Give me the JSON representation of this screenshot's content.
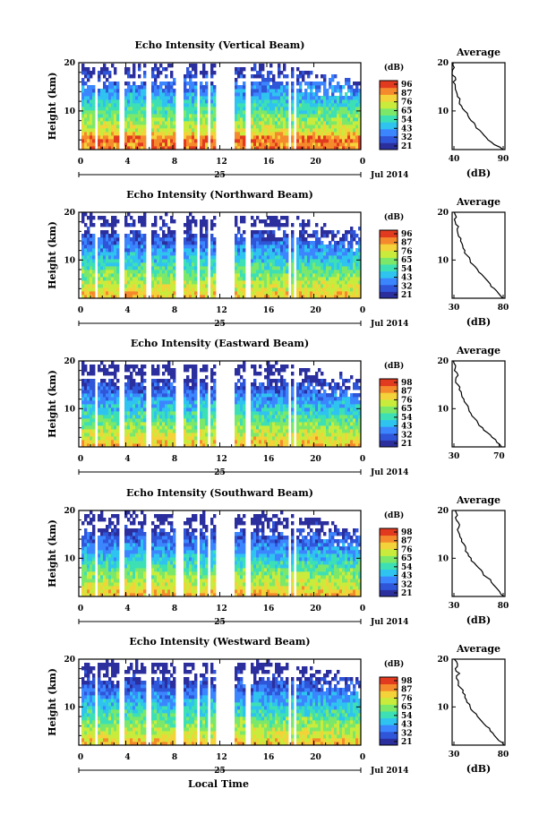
{
  "figure": {
    "xlabel": "Local Time",
    "date_label": "25",
    "month_label": "Jul 2014"
  },
  "colors": {
    "scale": [
      "#2b2f9e",
      "#2f55d8",
      "#3b86ff",
      "#2fc3f0",
      "#3de0b5",
      "#7ce86a",
      "#c9ec3c",
      "#f3d23a",
      "#f58a2c",
      "#e23a1f"
    ]
  },
  "chart_data": [
    {
      "type": "heatmap",
      "title": "Echo Intensity (Vertical Beam)",
      "ylabel": "Height (km)",
      "x_ticks": [
        "0",
        "4",
        "8",
        "12",
        "16",
        "20",
        "0"
      ],
      "xlim": [
        0,
        24
      ],
      "ylim": [
        2,
        20
      ],
      "y_ticks": [
        "20",
        "10"
      ],
      "colorbar": {
        "unit": "(dB)",
        "ticks": [
          "96",
          "87",
          "76",
          "65",
          "54",
          "43",
          "32",
          "21"
        ],
        "range": [
          21,
          96
        ]
      },
      "gaps_hours": [
        [
          0,
          0.2
        ],
        [
          1.2,
          1.6
        ],
        [
          3.4,
          3.8
        ],
        [
          5.6,
          6.0
        ],
        [
          8.2,
          8.8
        ],
        [
          10.0,
          10.2
        ],
        [
          10.8,
          11.0
        ],
        [
          11.6,
          13.2
        ],
        [
          14.0,
          14.4
        ],
        [
          17.6,
          17.9
        ],
        [
          18.2,
          18.4
        ]
      ],
      "profile": {
        "title": "Average",
        "xlabel": "(dB)",
        "xlim": [
          40,
          90
        ],
        "x_ticks": [
          "40",
          "90"
        ],
        "heights_km": [
          2,
          3,
          4,
          5,
          6,
          7,
          8,
          9,
          10,
          11,
          12,
          13,
          14,
          15,
          16,
          17,
          18,
          19,
          20
        ],
        "values_db": [
          88,
          80,
          74,
          70,
          66,
          62,
          58,
          55,
          52,
          49,
          47,
          45,
          44,
          43,
          41,
          43,
          40,
          42,
          41
        ]
      }
    },
    {
      "type": "heatmap",
      "title": "Echo Intensity (Northward Beam)",
      "ylabel": "Height (km)",
      "x_ticks": [
        "0",
        "4",
        "8",
        "12",
        "16",
        "20",
        "0"
      ],
      "xlim": [
        0,
        24
      ],
      "ylim": [
        2,
        20
      ],
      "y_ticks": [
        "20",
        "10"
      ],
      "colorbar": {
        "unit": "(dB)",
        "ticks": [
          "96",
          "87",
          "76",
          "65",
          "54",
          "43",
          "32",
          "21"
        ],
        "range": [
          21,
          96
        ]
      },
      "gaps_hours": [
        [
          0,
          0.2
        ],
        [
          1.2,
          1.6
        ],
        [
          3.4,
          3.8
        ],
        [
          5.6,
          6.0
        ],
        [
          8.2,
          8.8
        ],
        [
          10.0,
          10.2
        ],
        [
          10.8,
          11.0
        ],
        [
          11.6,
          13.2
        ],
        [
          14.0,
          14.4
        ],
        [
          17.6,
          17.9
        ],
        [
          18.2,
          18.4
        ]
      ],
      "profile": {
        "title": "Average",
        "xlabel": "(dB)",
        "xlim": [
          30,
          80
        ],
        "x_ticks": [
          "30",
          "80"
        ],
        "heights_km": [
          2,
          3,
          4,
          5,
          6,
          7,
          8,
          9,
          10,
          11,
          12,
          13,
          14,
          15,
          16,
          17,
          18,
          19,
          20
        ],
        "values_db": [
          78,
          74,
          70,
          66,
          62,
          58,
          54,
          50,
          47,
          44,
          42,
          40,
          38,
          36,
          35,
          36,
          33,
          34,
          32
        ]
      }
    },
    {
      "type": "heatmap",
      "title": "Echo Intensity (Eastward Beam)",
      "ylabel": "Height (km)",
      "x_ticks": [
        "0",
        "4",
        "8",
        "12",
        "16",
        "20",
        "0"
      ],
      "xlim": [
        0,
        24
      ],
      "ylim": [
        2,
        20
      ],
      "y_ticks": [
        "20",
        "10"
      ],
      "colorbar": {
        "unit": "(dB)",
        "ticks": [
          "98",
          "87",
          "76",
          "65",
          "54",
          "43",
          "32",
          "21"
        ],
        "range": [
          21,
          98
        ]
      },
      "gaps_hours": [
        [
          0,
          0.2
        ],
        [
          1.2,
          1.6
        ],
        [
          3.4,
          3.8
        ],
        [
          5.6,
          6.0
        ],
        [
          8.2,
          8.8
        ],
        [
          10.0,
          10.2
        ],
        [
          10.8,
          11.0
        ],
        [
          11.6,
          13.2
        ],
        [
          14.0,
          14.4
        ],
        [
          17.6,
          17.9
        ],
        [
          18.2,
          18.4
        ]
      ],
      "profile": {
        "title": "Average",
        "xlabel": "",
        "xlim": [
          30,
          75
        ],
        "x_ticks": [
          "30",
          "70"
        ],
        "heights_km": [
          2,
          3,
          4,
          5,
          6,
          7,
          8,
          9,
          10,
          11,
          12,
          13,
          14,
          15,
          16,
          17,
          18,
          19,
          20
        ],
        "values_db": [
          72,
          68,
          64,
          60,
          56,
          52,
          49,
          46,
          44,
          42,
          40,
          38,
          36,
          35,
          33,
          35,
          32,
          33,
          31
        ]
      }
    },
    {
      "type": "heatmap",
      "title": "Echo Intensity (Southward Beam)",
      "ylabel": "Height (km)",
      "x_ticks": [
        "0",
        "4",
        "8",
        "12",
        "16",
        "20",
        "0"
      ],
      "xlim": [
        0,
        24
      ],
      "ylim": [
        2,
        20
      ],
      "y_ticks": [
        "20",
        "10"
      ],
      "colorbar": {
        "unit": "(dB)",
        "ticks": [
          "98",
          "87",
          "76",
          "65",
          "54",
          "43",
          "32",
          "21"
        ],
        "range": [
          21,
          98
        ]
      },
      "gaps_hours": [
        [
          0,
          0.2
        ],
        [
          1.2,
          1.6
        ],
        [
          3.4,
          3.8
        ],
        [
          5.6,
          6.0
        ],
        [
          8.2,
          8.8
        ],
        [
          10.0,
          10.2
        ],
        [
          10.8,
          11.0
        ],
        [
          11.6,
          13.2
        ],
        [
          14.0,
          14.4
        ],
        [
          17.6,
          17.9
        ],
        [
          18.2,
          18.4
        ]
      ],
      "profile": {
        "title": "Average",
        "xlabel": "(dB)",
        "xlim": [
          30,
          80
        ],
        "x_ticks": [
          "30",
          "80"
        ],
        "heights_km": [
          2,
          3,
          4,
          5,
          6,
          7,
          8,
          9,
          10,
          11,
          12,
          13,
          14,
          15,
          16,
          17,
          18,
          19,
          20
        ],
        "values_db": [
          79,
          75,
          71,
          67,
          63,
          59,
          55,
          51,
          48,
          45,
          43,
          41,
          39,
          37,
          35,
          37,
          34,
          35,
          33
        ]
      }
    },
    {
      "type": "heatmap",
      "title": "Echo Intensity (Westward Beam)",
      "ylabel": "Height (km)",
      "x_ticks": [
        "0",
        "4",
        "8",
        "12",
        "16",
        "20",
        "0"
      ],
      "xlim": [
        0,
        24
      ],
      "ylim": [
        2,
        20
      ],
      "y_ticks": [
        "20",
        "10"
      ],
      "colorbar": {
        "unit": "(dB)",
        "ticks": [
          "98",
          "87",
          "76",
          "65",
          "54",
          "43",
          "32",
          "21"
        ],
        "range": [
          21,
          98
        ]
      },
      "gaps_hours": [
        [
          0,
          0.2
        ],
        [
          1.2,
          1.6
        ],
        [
          3.4,
          3.8
        ],
        [
          5.6,
          6.0
        ],
        [
          8.2,
          8.8
        ],
        [
          10.0,
          10.2
        ],
        [
          10.8,
          11.0
        ],
        [
          11.6,
          13.2
        ],
        [
          14.0,
          14.4
        ],
        [
          17.6,
          17.9
        ],
        [
          18.2,
          18.4
        ]
      ],
      "profile": {
        "title": "Average",
        "xlabel": "(dB)",
        "xlim": [
          30,
          80
        ],
        "x_ticks": [
          "30",
          "80"
        ],
        "heights_km": [
          2,
          3,
          4,
          5,
          6,
          7,
          8,
          9,
          10,
          11,
          12,
          13,
          14,
          15,
          16,
          17,
          18,
          19,
          20
        ],
        "values_db": [
          79,
          74,
          70,
          66,
          62,
          58,
          54,
          50,
          47,
          44,
          42,
          40,
          38,
          36,
          34,
          37,
          33,
          35,
          32
        ]
      }
    }
  ]
}
